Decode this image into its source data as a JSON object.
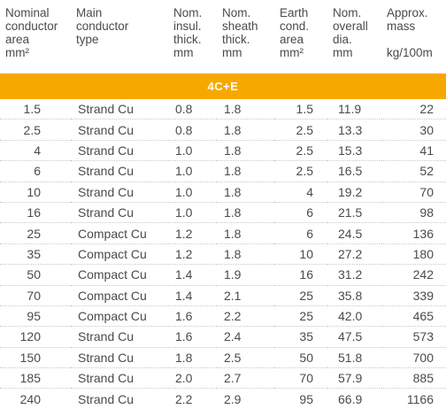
{
  "headers": [
    {
      "lines": [
        "Nominal",
        "conductor",
        "area",
        "mm²"
      ]
    },
    {
      "lines": [
        "Main",
        "conductor",
        "type",
        ""
      ]
    },
    {
      "lines": [
        "Nom.",
        "insul.",
        "thick.",
        "mm"
      ]
    },
    {
      "lines": [
        "Nom.",
        "sheath",
        "thick.",
        "mm"
      ]
    },
    {
      "lines": [
        "Earth",
        "cond.",
        "area",
        "mm²"
      ]
    },
    {
      "lines": [
        "Nom.",
        "overall",
        "dia.",
        "mm"
      ]
    },
    {
      "lines": [
        "Approx.",
        "mass",
        "",
        "kg/100m"
      ]
    }
  ],
  "section_label": "4C+E",
  "rows": [
    {
      "area": "1.5",
      "type": "Strand Cu",
      "insul": "0.8",
      "sheath": "1.8",
      "earth": "1.5",
      "dia": "11.9",
      "mass": "22"
    },
    {
      "area": "2.5",
      "type": "Strand Cu",
      "insul": "0.8",
      "sheath": "1.8",
      "earth": "2.5",
      "dia": "13.3",
      "mass": "30"
    },
    {
      "area": "4",
      "type": "Strand Cu",
      "insul": "1.0",
      "sheath": "1.8",
      "earth": "2.5",
      "dia": "15.3",
      "mass": "41"
    },
    {
      "area": "6",
      "type": "Strand Cu",
      "insul": "1.0",
      "sheath": "1.8",
      "earth": "2.5",
      "dia": "16.5",
      "mass": "52"
    },
    {
      "area": "10",
      "type": "Strand Cu",
      "insul": "1.0",
      "sheath": "1.8",
      "earth": "4",
      "dia": "19.2",
      "mass": "70"
    },
    {
      "area": "16",
      "type": "Strand Cu",
      "insul": "1.0",
      "sheath": "1.8",
      "earth": "6",
      "dia": "21.5",
      "mass": "98"
    },
    {
      "area": "25",
      "type": "Compact Cu",
      "insul": "1.2",
      "sheath": "1.8",
      "earth": "6",
      "dia": "24.5",
      "mass": "136"
    },
    {
      "area": "35",
      "type": "Compact Cu",
      "insul": "1.2",
      "sheath": "1.8",
      "earth": "10",
      "dia": "27.2",
      "mass": "180"
    },
    {
      "area": "50",
      "type": "Compact Cu",
      "insul": "1.4",
      "sheath": "1.9",
      "earth": "16",
      "dia": "31.2",
      "mass": "242"
    },
    {
      "area": "70",
      "type": "Compact Cu",
      "insul": "1.4",
      "sheath": "2.1",
      "earth": "25",
      "dia": "35.8",
      "mass": "339"
    },
    {
      "area": "95",
      "type": "Compact Cu",
      "insul": "1.6",
      "sheath": "2.2",
      "earth": "25",
      "dia": "42.0",
      "mass": "465"
    },
    {
      "area": "120",
      "type": "Strand Cu",
      "insul": "1.6",
      "sheath": "2.4",
      "earth": "35",
      "dia": "47.5",
      "mass": "573"
    },
    {
      "area": "150",
      "type": "Strand Cu",
      "insul": "1.8",
      "sheath": "2.5",
      "earth": "50",
      "dia": "51.8",
      "mass": "700"
    },
    {
      "area": "185",
      "type": "Strand Cu",
      "insul": "2.0",
      "sheath": "2.7",
      "earth": "70",
      "dia": "57.9",
      "mass": "885"
    },
    {
      "area": "240",
      "type": "Strand Cu",
      "insul": "2.2",
      "sheath": "2.9",
      "earth": "95",
      "dia": "66.9",
      "mass": "1166"
    }
  ],
  "colors": {
    "band": "#f7a800",
    "text": "#4a4a4a"
  }
}
